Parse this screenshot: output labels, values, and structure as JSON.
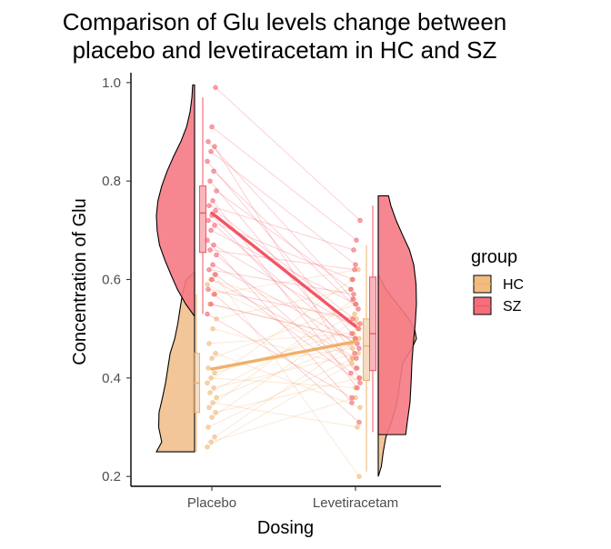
{
  "chart_data": {
    "type": "raincloud",
    "title_lines": [
      "Comparison of Glu levels change between",
      "placebo and levetiracetam in HC and SZ"
    ],
    "xlabel": "Dosing",
    "ylabel": "Concentration of Glu",
    "categories": [
      "Placebo",
      "Levetiracetam"
    ],
    "ylim": [
      0.18,
      1.02
    ],
    "yticks": [
      0.2,
      0.4,
      0.6,
      0.8,
      1.0
    ],
    "ytick_labels": [
      "0.2",
      "0.4",
      "0.6",
      "0.8",
      "1.0"
    ],
    "grid": false,
    "legend": {
      "title": "group",
      "position": "right",
      "entries": [
        {
          "label": "HC",
          "color": "#f0b06a"
        },
        {
          "label": "SZ",
          "color": "#f25564"
        }
      ]
    },
    "series": [
      {
        "name": "HC",
        "color": "#f0b06a",
        "fill": "#f1c08e",
        "mean_placebo": 0.418,
        "mean_levetiracetam": 0.474,
        "box_placebo": {
          "min": 0.25,
          "q1": 0.33,
          "median": 0.39,
          "q3": 0.45,
          "max": 0.57
        },
        "box_levetiracetam": {
          "min": 0.21,
          "q1": 0.395,
          "median": 0.465,
          "q3": 0.52,
          "max": 0.67
        },
        "density_placebo": {
          "y": [
            0.25,
            0.27,
            0.3,
            0.33,
            0.36,
            0.39,
            0.42,
            0.45,
            0.48,
            0.51,
            0.54,
            0.57,
            0.6,
            0.615
          ],
          "d": [
            1.0,
            0.86,
            0.94,
            0.93,
            0.84,
            0.76,
            0.7,
            0.64,
            0.52,
            0.44,
            0.38,
            0.32,
            0.22,
            0.0
          ]
        },
        "density_levetiracetam": {
          "y": [
            0.2,
            0.22,
            0.25,
            0.28,
            0.31,
            0.34,
            0.37,
            0.4,
            0.43,
            0.46,
            0.48,
            0.5,
            0.52,
            0.55,
            0.58,
            0.61
          ],
          "d": [
            0.0,
            0.08,
            0.13,
            0.2,
            0.34,
            0.46,
            0.53,
            0.58,
            0.64,
            0.88,
            1.0,
            0.95,
            0.8,
            0.5,
            0.2,
            0.0
          ]
        },
        "pairs": [
          [
            0.26,
            0.43
          ],
          [
            0.27,
            0.36
          ],
          [
            0.28,
            0.48
          ],
          [
            0.3,
            0.44
          ],
          [
            0.32,
            0.52
          ],
          [
            0.33,
            0.4
          ],
          [
            0.34,
            0.56
          ],
          [
            0.35,
            0.3
          ],
          [
            0.36,
            0.47
          ],
          [
            0.37,
            0.53
          ],
          [
            0.38,
            0.45
          ],
          [
            0.39,
            0.6
          ],
          [
            0.4,
            0.38
          ],
          [
            0.41,
            0.5
          ],
          [
            0.42,
            0.46
          ],
          [
            0.44,
            0.55
          ],
          [
            0.45,
            0.34
          ],
          [
            0.47,
            0.49
          ],
          [
            0.5,
            0.42
          ],
          [
            0.52,
            0.58
          ],
          [
            0.55,
            0.48
          ],
          [
            0.57,
            0.62
          ],
          [
            0.59,
            0.44
          ],
          [
            0.6,
            0.51
          ],
          [
            0.61,
            0.2
          ]
        ]
      },
      {
        "name": "SZ",
        "color": "#f25564",
        "fill": "#f57a84",
        "mean_placebo": 0.735,
        "mean_levetiracetam": 0.505,
        "box_placebo": {
          "min": 0.53,
          "q1": 0.655,
          "median": 0.735,
          "q3": 0.79,
          "max": 0.97
        },
        "box_levetiracetam": {
          "min": 0.29,
          "q1": 0.415,
          "median": 0.49,
          "q3": 0.605,
          "max": 0.75
        },
        "density_placebo": {
          "y": [
            0.525,
            0.55,
            0.58,
            0.61,
            0.64,
            0.67,
            0.7,
            0.73,
            0.76,
            0.79,
            0.82,
            0.85,
            0.88,
            0.91,
            0.94,
            0.97,
            0.995
          ],
          "d": [
            0.0,
            0.23,
            0.45,
            0.62,
            0.78,
            0.92,
            0.98,
            1.0,
            0.96,
            0.86,
            0.72,
            0.55,
            0.36,
            0.21,
            0.12,
            0.07,
            0.05
          ]
        },
        "density_levetiracetam": {
          "y": [
            0.285,
            0.31,
            0.35,
            0.39,
            0.43,
            0.47,
            0.51,
            0.55,
            0.59,
            0.63,
            0.66,
            0.69,
            0.72,
            0.75,
            0.77
          ],
          "d": [
            0.72,
            0.76,
            0.83,
            0.86,
            0.88,
            0.92,
            0.97,
            1.0,
            0.99,
            0.93,
            0.82,
            0.64,
            0.47,
            0.33,
            0.27
          ]
        },
        "pairs": [
          [
            0.53,
            0.36
          ],
          [
            0.55,
            0.48
          ],
          [
            0.57,
            0.31
          ],
          [
            0.58,
            0.52
          ],
          [
            0.6,
            0.44
          ],
          [
            0.61,
            0.39
          ],
          [
            0.62,
            0.57
          ],
          [
            0.63,
            0.47
          ],
          [
            0.65,
            0.41
          ],
          [
            0.66,
            0.62
          ],
          [
            0.67,
            0.5
          ],
          [
            0.68,
            0.35
          ],
          [
            0.7,
            0.55
          ],
          [
            0.71,
            0.46
          ],
          [
            0.72,
            0.6
          ],
          [
            0.73,
            0.42
          ],
          [
            0.74,
            0.51
          ],
          [
            0.75,
            0.66
          ],
          [
            0.76,
            0.38
          ],
          [
            0.78,
            0.58
          ],
          [
            0.8,
            0.45
          ],
          [
            0.82,
            0.54
          ],
          [
            0.84,
            0.49
          ],
          [
            0.86,
            0.63
          ],
          [
            0.87,
            0.4
          ],
          [
            0.88,
            0.56
          ],
          [
            0.91,
            0.68
          ],
          [
            0.99,
            0.72
          ]
        ]
      }
    ]
  }
}
